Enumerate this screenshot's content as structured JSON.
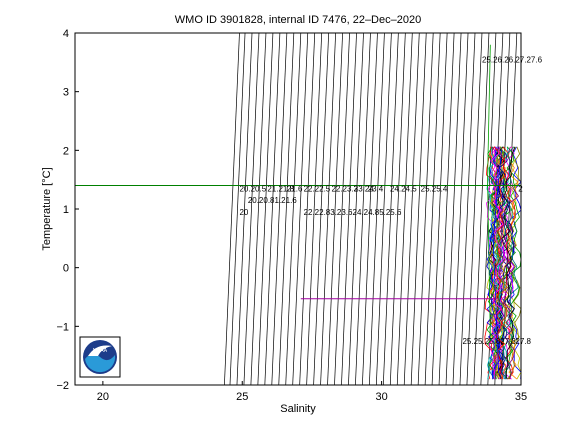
{
  "chart_data": {
    "type": "line",
    "title": "WMO ID 3901828, internal ID 7476, 22–Dec–2020",
    "xlabel": "Salinity",
    "ylabel": "Temperature [°C]",
    "xlim": [
      19,
      35
    ],
    "ylim": [
      -2,
      4
    ],
    "xticks": [
      "20",
      "25",
      "30",
      "35"
    ],
    "yticks": [
      "−2",
      "−1",
      "0",
      "1",
      "2",
      "3",
      "4"
    ],
    "grid": false,
    "density_isolines": {
      "start_x_at_top": [
        24.9,
        25.1,
        25.35,
        25.6,
        25.85,
        26.1,
        26.35,
        26.6,
        26.85,
        27.1,
        27.35,
        27.6,
        27.85,
        28.1,
        28.35,
        28.6,
        28.85,
        29.1,
        29.35,
        29.6,
        29.85,
        30.1,
        30.35,
        30.6,
        30.85,
        31.1,
        31.35,
        31.6,
        31.85,
        32.1,
        32.35,
        32.6,
        32.85,
        33.1,
        33.35,
        33.6,
        33.85,
        34.1,
        34.35,
        34.6,
        34.85
      ]
    },
    "isoline_labels": [
      {
        "text": "20",
        "x": 24.9,
        "y": 0.9
      },
      {
        "text": "20.20.5",
        "x": 24.9,
        "y": 1.3
      },
      {
        "text": "20.20.81.21.6",
        "x": 25.2,
        "y": 1.1
      },
      {
        "text": "21.21.8",
        "x": 25.9,
        "y": 1.3
      },
      {
        "text": "21.6",
        "x": 26.6,
        "y": 1.3
      },
      {
        "text": "22.22.5",
        "x": 27.2,
        "y": 1.3
      },
      {
        "text": "22.23.3",
        "x": 28.2,
        "y": 1.3
      },
      {
        "text": "23.4",
        "x": 29.5,
        "y": 1.3
      },
      {
        "text": "23.24",
        "x": 29.0,
        "y": 1.3
      },
      {
        "text": "24.24.5",
        "x": 30.3,
        "y": 1.3
      },
      {
        "text": "25.25.4",
        "x": 31.4,
        "y": 1.3
      },
      {
        "text": "22.22.83.23.624.24.85.25.6",
        "x": 27.2,
        "y": 0.9
      },
      {
        "text": "25.25.25.827.3",
        "x": 32.9,
        "y": -1.3
      },
      {
        "text": "27.8",
        "x": 34.8,
        "y": -1.3
      },
      {
        "text": "25.26.26.27.27.6",
        "x": 33.6,
        "y": 3.5
      },
      {
        "text": "2",
        "x": 34.9,
        "y": 1.3
      }
    ],
    "reference_lines": [
      {
        "color": "#008000",
        "y": 1.4,
        "x_from": 19,
        "x_to": 35
      },
      {
        "color": "#a000a0",
        "y": -0.53,
        "x_from": 27.1,
        "x_to": 34.2
      }
    ],
    "profile_cluster": {
      "salinity_range": [
        33.6,
        35.0
      ],
      "temperature_range": [
        -1.9,
        3.8
      ],
      "colors": [
        "#0000ff",
        "#ff0000",
        "#00a000",
        "#ff00ff",
        "#00c0c0",
        "#c0c000",
        "#ff8000",
        "#800080",
        "#000080",
        "#008080",
        "#808000",
        "#000000"
      ]
    }
  },
  "logo": {
    "text": "NOAA",
    "colors": {
      "outer": "#1d3c8a",
      "inner": "#2a9ad8",
      "bird": "#ffffff"
    }
  }
}
